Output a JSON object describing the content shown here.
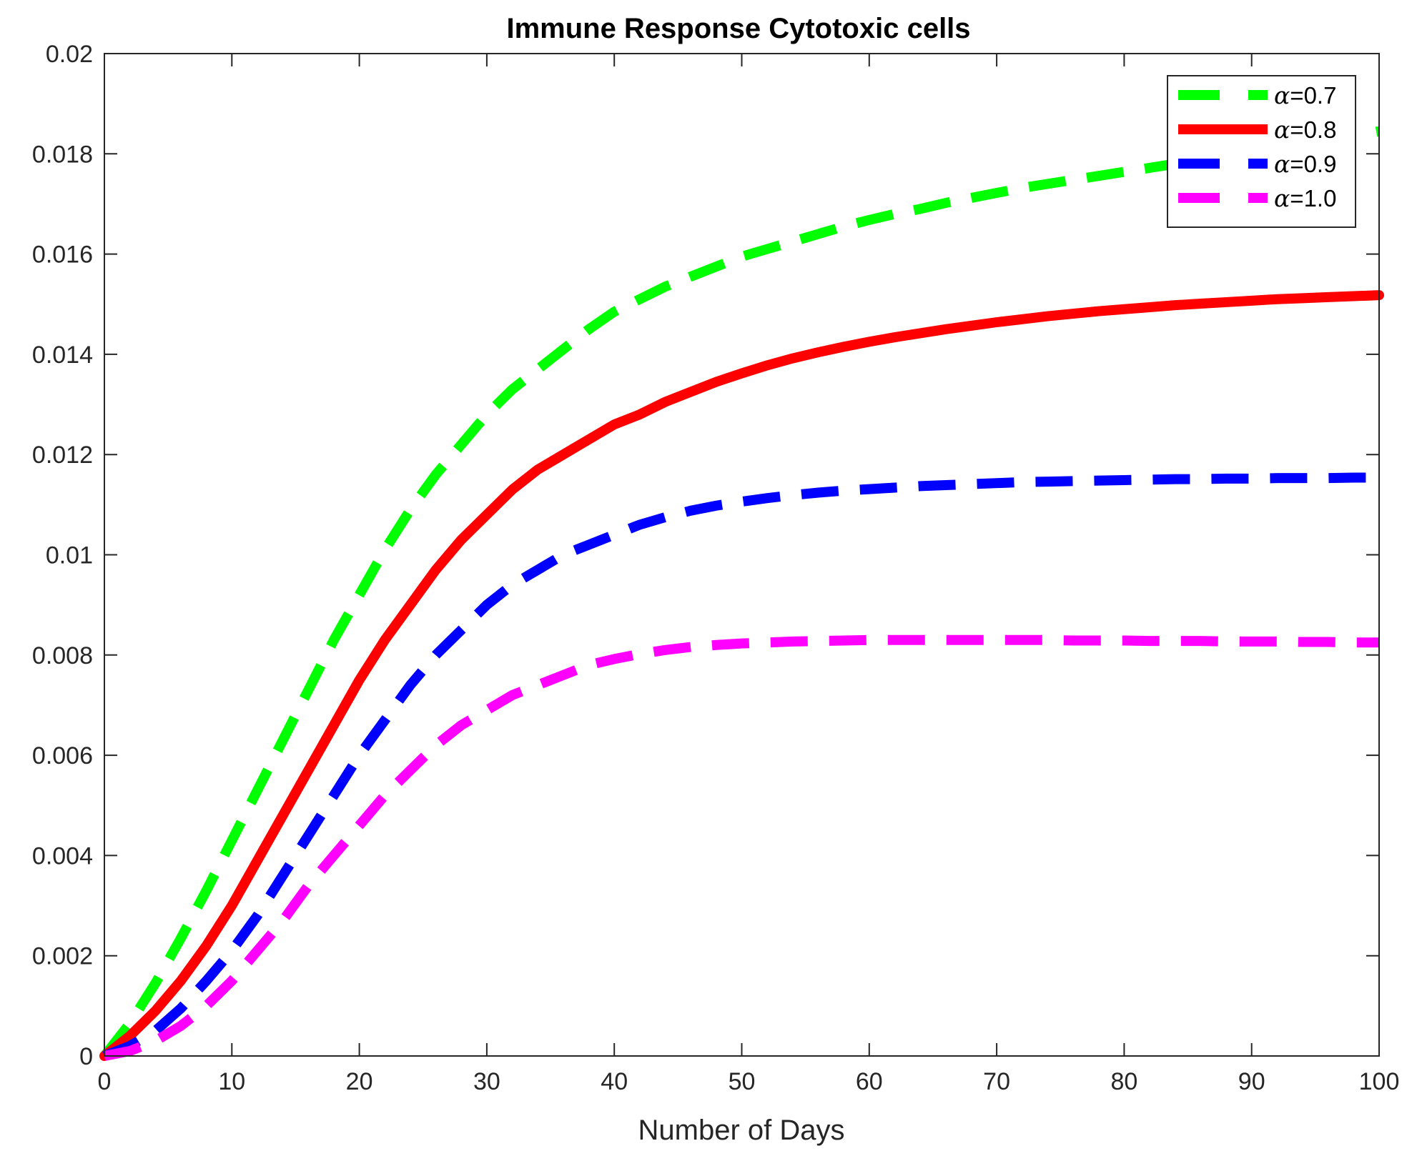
{
  "chart_data": {
    "type": "line",
    "title": "Immune Response Cytotoxic cells",
    "xlabel": "Number of Days",
    "ylabel": "",
    "xlim": [
      0,
      100
    ],
    "ylim": [
      0,
      0.02
    ],
    "xticks": [
      0,
      10,
      20,
      30,
      40,
      50,
      60,
      70,
      80,
      90,
      100
    ],
    "xtick_labels": [
      "0",
      "10",
      "20",
      "30",
      "40",
      "50",
      "60",
      "70",
      "80",
      "90",
      "100"
    ],
    "yticks": [
      0,
      0.002,
      0.004,
      0.006,
      0.008,
      0.01,
      0.012,
      0.014,
      0.016,
      0.018,
      0.02
    ],
    "ytick_labels": [
      "0",
      "0.002",
      "0.004",
      "0.006",
      "0.008",
      "0.01",
      "0.012",
      "0.014",
      "0.016",
      "0.018",
      "0.02"
    ],
    "grid": false,
    "legend_position": "top-right",
    "x": [
      0,
      2,
      4,
      6,
      8,
      10,
      12,
      14,
      16,
      18,
      20,
      22,
      24,
      26,
      28,
      30,
      32,
      34,
      36,
      38,
      40,
      42,
      44,
      46,
      48,
      50,
      52,
      54,
      56,
      58,
      60,
      62,
      64,
      66,
      68,
      70,
      72,
      74,
      76,
      78,
      80,
      82,
      84,
      86,
      88,
      90,
      92,
      94,
      96,
      98,
      100
    ],
    "series": [
      {
        "name": "α=0.7",
        "legend_symbol": "α",
        "legend_value": "=0.7",
        "color": "#00ff00",
        "style": "dashed",
        "values": [
          0,
          0.00065,
          0.00145,
          0.00235,
          0.0033,
          0.0043,
          0.0053,
          0.0063,
          0.0073,
          0.0083,
          0.0092,
          0.0101,
          0.0109,
          0.0116,
          0.0122,
          0.0128,
          0.0133,
          0.0137,
          0.0141,
          0.0145,
          0.01485,
          0.0151,
          0.01535,
          0.01555,
          0.01575,
          0.01595,
          0.0161,
          0.01625,
          0.0164,
          0.01655,
          0.01668,
          0.0168,
          0.0169,
          0.01702,
          0.01712,
          0.01722,
          0.01732,
          0.0174,
          0.01748,
          0.01756,
          0.01764,
          0.01772,
          0.0178,
          0.01788,
          0.01796,
          0.01804,
          0.01812,
          0.0182,
          0.01828,
          0.01836,
          0.01845
        ]
      },
      {
        "name": "α=0.8",
        "legend_symbol": "α",
        "legend_value": "=0.8",
        "color": "#ff0000",
        "style": "solid",
        "values": [
          0,
          0.0004,
          0.0009,
          0.0015,
          0.0022,
          0.003,
          0.0039,
          0.0048,
          0.0057,
          0.0066,
          0.0075,
          0.0083,
          0.009,
          0.0097,
          0.0103,
          0.0108,
          0.0113,
          0.0117,
          0.012,
          0.0123,
          0.0126,
          0.0128,
          0.01305,
          0.01325,
          0.01345,
          0.01362,
          0.01378,
          0.01392,
          0.01404,
          0.01415,
          0.01425,
          0.01434,
          0.01442,
          0.0145,
          0.01457,
          0.01464,
          0.0147,
          0.01476,
          0.01481,
          0.01486,
          0.0149,
          0.01494,
          0.01498,
          0.01501,
          0.01504,
          0.01507,
          0.0151,
          0.01512,
          0.01514,
          0.01516,
          0.01518
        ]
      },
      {
        "name": "α=0.9",
        "legend_symbol": "α",
        "legend_value": "=0.9",
        "color": "#0000ff",
        "style": "dashed",
        "values": [
          0,
          0.0002,
          0.0005,
          0.00095,
          0.0015,
          0.0021,
          0.0028,
          0.0036,
          0.0044,
          0.0052,
          0.006,
          0.0067,
          0.0074,
          0.008,
          0.0085,
          0.009,
          0.0094,
          0.0097,
          0.01,
          0.0102,
          0.0104,
          0.0106,
          0.01075,
          0.01088,
          0.01098,
          0.01106,
          0.01113,
          0.01119,
          0.01124,
          0.01128,
          0.01131,
          0.01134,
          0.01137,
          0.01139,
          0.01141,
          0.01143,
          0.01145,
          0.01146,
          0.01147,
          0.01148,
          0.01149,
          0.0115,
          0.01151,
          0.01151,
          0.01152,
          0.01152,
          0.01153,
          0.01153,
          0.01153,
          0.01154,
          0.01154
        ]
      },
      {
        "name": "α=1.0",
        "legend_symbol": "α",
        "legend_value": "=1.0",
        "color": "#ff00ff",
        "style": "dashed",
        "values": [
          0,
          0.0001,
          0.0003,
          0.0006,
          0.001,
          0.0015,
          0.0021,
          0.0027,
          0.0034,
          0.004,
          0.0046,
          0.0052,
          0.0057,
          0.0062,
          0.0066,
          0.0069,
          0.0072,
          0.0074,
          0.0076,
          0.0078,
          0.00792,
          0.00802,
          0.0081,
          0.00816,
          0.0082,
          0.00823,
          0.00825,
          0.00827,
          0.00828,
          0.00829,
          0.0083,
          0.0083,
          0.0083,
          0.0083,
          0.0083,
          0.0083,
          0.0083,
          0.0083,
          0.00829,
          0.00829,
          0.00829,
          0.00828,
          0.00828,
          0.00828,
          0.00827,
          0.00827,
          0.00827,
          0.00826,
          0.00826,
          0.00825,
          0.00825
        ]
      }
    ]
  }
}
